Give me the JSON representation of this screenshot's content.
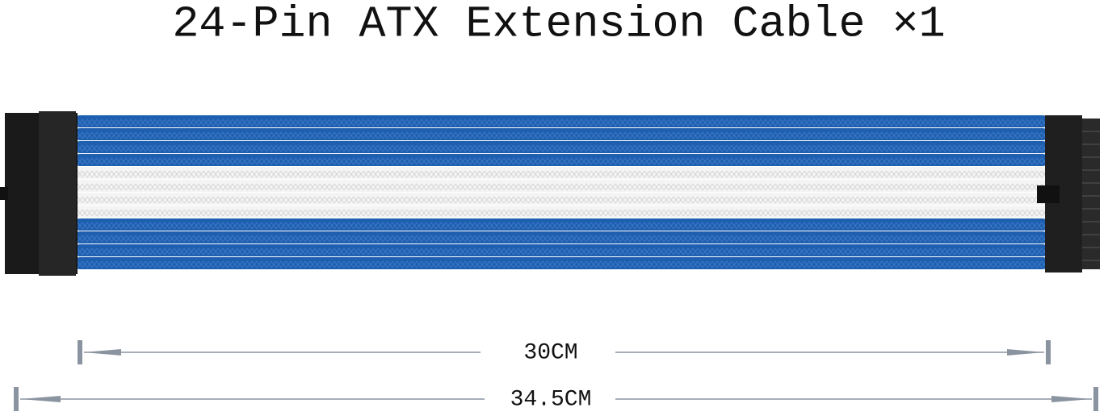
{
  "title": "24-Pin ATX Extension Cable ×1",
  "dimensions": [
    {
      "label": "30CM"
    },
    {
      "label": "34.5CM"
    }
  ]
}
